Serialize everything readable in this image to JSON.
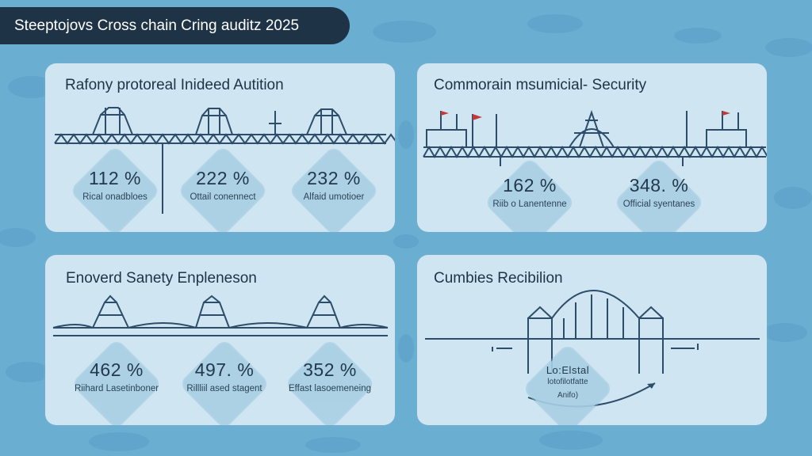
{
  "header": {
    "title": "Steeptojovs Cross chain Cring auditz 2025"
  },
  "panels": [
    {
      "title": "Rafony protoreal Inideed Autition",
      "stats": [
        {
          "value": "112 %",
          "label": "Rical onadbloes"
        },
        {
          "value": "222 %",
          "label": "Ottail conennect"
        },
        {
          "value": "232 %",
          "label": "Alfaid umotioer"
        }
      ]
    },
    {
      "title": "Commorain msumicial- Security",
      "stats": [
        {
          "value": "162 %",
          "label": "Riib o Lanentenne"
        },
        {
          "value": "348. %",
          "label": "Official syentanes"
        }
      ]
    },
    {
      "title": "Enoverd Sanety Enpleneson",
      "stats": [
        {
          "value": "462 %",
          "label": "Riihard Lasetinboner"
        },
        {
          "value": "497. %",
          "label": "Rillliil ased stagent"
        },
        {
          "value": "352 %",
          "label": "Effast lasoemeneing"
        }
      ]
    },
    {
      "title": "Cumbies Recibilion",
      "stats": [
        {
          "value": "Lo:Elstal",
          "label": "lotofilotfatte"
        },
        {
          "value": "",
          "label": "Anifo)"
        }
      ]
    }
  ],
  "colors": {
    "background": "#6aaed2",
    "title_bar": "#1f3347",
    "panel": "#cfe6f2",
    "bridge": "#2e4d6a",
    "accent_red": "#c0393b"
  }
}
